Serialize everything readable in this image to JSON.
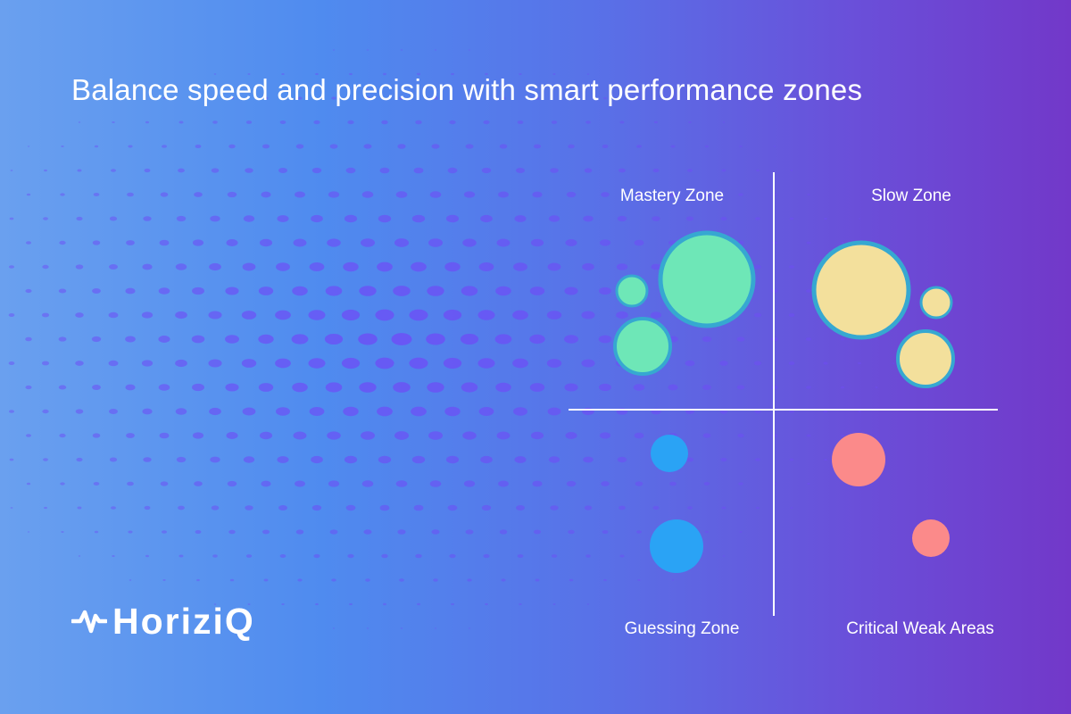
{
  "headline": "Balance speed and precision with smart performance zones",
  "brand": {
    "name": "HoriziQ",
    "icon": "pulse-wave-logo-icon"
  },
  "zones": [
    {
      "id": "mastery",
      "label": "Mastery Zone",
      "color": "#6ee7b7"
    },
    {
      "id": "slow",
      "label": "Slow Zone",
      "color": "#f3e09c"
    },
    {
      "id": "guessing",
      "label": "Guessing Zone",
      "color": "#2aa3f5"
    },
    {
      "id": "critical",
      "label": "Critical Weak Areas",
      "color": "#fb8a8a"
    }
  ],
  "colors": {
    "ring": "#36a8d1",
    "axis": "#ffffff",
    "text": "#ffffff"
  }
}
